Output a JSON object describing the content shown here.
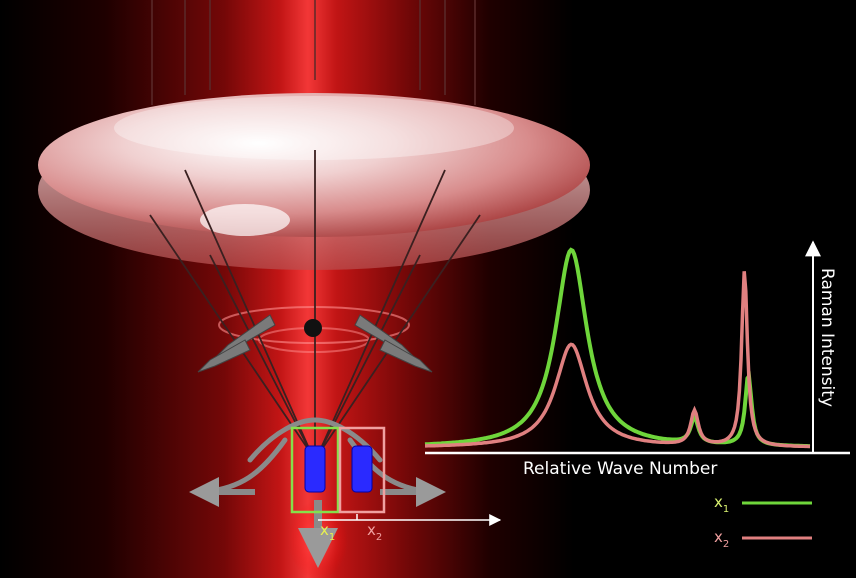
{
  "diagram": {
    "x_axis_label": "Relative Wave Number",
    "y_axis_label": "Raman Intensity",
    "position_labels": {
      "x1": "x",
      "x1_sub": "1",
      "x2": "x",
      "x2_sub": "2"
    },
    "legend": [
      {
        "label": "x",
        "sub": "1",
        "color": "#6fd63b"
      },
      {
        "label": "x",
        "sub": "2",
        "color": "#e08080"
      }
    ],
    "colors": {
      "background": "#000000",
      "laser": "#cc1111",
      "spectrum_x1": "#6fd63b",
      "spectrum_x2": "#e08080",
      "box_x1": "#86e04a",
      "box_x2": "#f0a0a0",
      "particle": "#2a2aff"
    }
  },
  "chart_data": {
    "type": "line",
    "xlabel": "Relative Wave Number",
    "ylabel": "Raman Intensity",
    "series": [
      {
        "name": "x1",
        "x": [
          0,
          0.25,
          0.45,
          0.55,
          0.72,
          0.76,
          0.8,
          0.88,
          0.9,
          0.93,
          0.95,
          0.97,
          1.0
        ],
        "values": [
          0.02,
          0.2,
          0.95,
          0.35,
          0.05,
          0.2,
          0.05,
          0.1,
          0.3,
          0.15,
          0.05,
          0.02,
          0.02
        ]
      },
      {
        "name": "x2",
        "x": [
          0,
          0.25,
          0.45,
          0.55,
          0.72,
          0.76,
          0.8,
          0.88,
          0.9,
          0.93,
          0.95,
          0.97,
          1.0
        ],
        "values": [
          0.02,
          0.1,
          0.5,
          0.2,
          0.05,
          0.17,
          0.05,
          0.2,
          0.85,
          0.2,
          0.05,
          0.02,
          0.02
        ]
      }
    ]
  }
}
